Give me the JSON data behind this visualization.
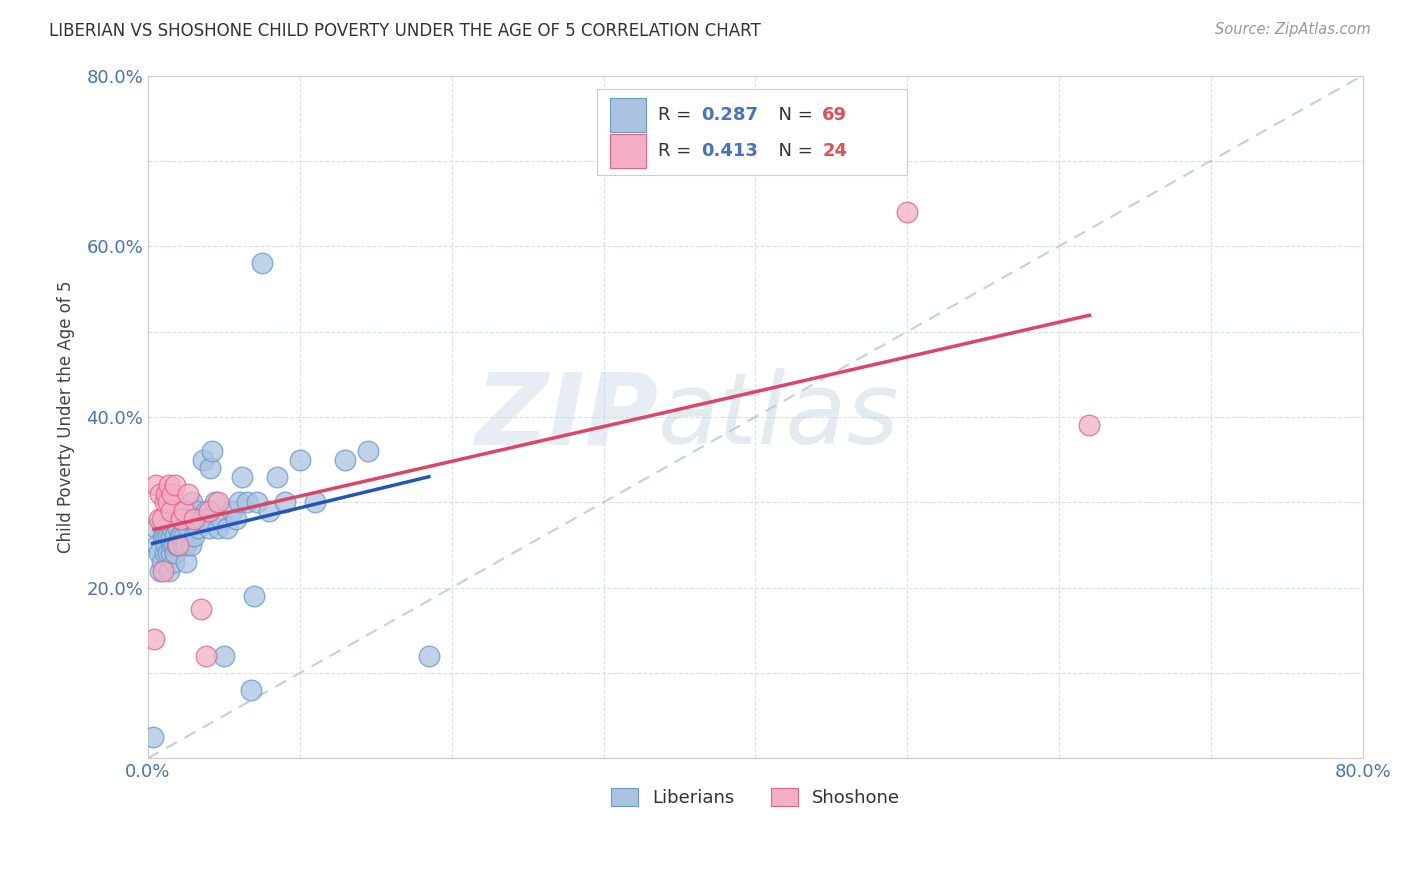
{
  "title": "LIBERIAN VS SHOSHONE CHILD POVERTY UNDER THE AGE OF 5 CORRELATION CHART",
  "source": "Source: ZipAtlas.com",
  "ylabel": "Child Poverty Under the Age of 5",
  "xlim": [
    0.0,
    0.8
  ],
  "ylim": [
    0.0,
    0.8
  ],
  "liberian_color": "#aac4e0",
  "shoshone_color": "#f4afc5",
  "liberian_edge_color": "#6699cc",
  "shoshone_edge_color": "#dd6688",
  "trend_liberian_color": "#2255bb",
  "trend_shoshone_color": "#dd4466",
  "dashed_line_color": "#b8c8d8",
  "watermark_zip": "ZIP",
  "watermark_atlas": "atlas",
  "R_liberian": "0.287",
  "N_liberian": "69",
  "R_shoshone": "0.413",
  "N_shoshone": "24",
  "liberian_x": [
    0.003,
    0.005,
    0.006,
    0.007,
    0.008,
    0.009,
    0.01,
    0.01,
    0.011,
    0.011,
    0.012,
    0.012,
    0.013,
    0.013,
    0.014,
    0.015,
    0.015,
    0.016,
    0.016,
    0.017,
    0.017,
    0.018,
    0.018,
    0.019,
    0.02,
    0.02,
    0.021,
    0.022,
    0.022,
    0.023,
    0.024,
    0.025,
    0.025,
    0.026,
    0.027,
    0.028,
    0.029,
    0.03,
    0.031,
    0.032,
    0.033,
    0.035,
    0.036,
    0.038,
    0.04,
    0.041,
    0.042,
    0.044,
    0.046,
    0.048,
    0.05,
    0.052,
    0.055,
    0.058,
    0.06,
    0.062,
    0.065,
    0.068,
    0.07,
    0.072,
    0.075,
    0.08,
    0.085,
    0.09,
    0.1,
    0.11,
    0.13,
    0.145,
    0.185
  ],
  "liberian_y": [
    0.025,
    0.27,
    0.25,
    0.24,
    0.22,
    0.23,
    0.26,
    0.28,
    0.24,
    0.26,
    0.25,
    0.27,
    0.24,
    0.26,
    0.22,
    0.24,
    0.26,
    0.25,
    0.27,
    0.23,
    0.25,
    0.24,
    0.26,
    0.25,
    0.25,
    0.27,
    0.26,
    0.26,
    0.28,
    0.25,
    0.26,
    0.23,
    0.25,
    0.27,
    0.28,
    0.25,
    0.3,
    0.26,
    0.28,
    0.29,
    0.27,
    0.28,
    0.35,
    0.29,
    0.27,
    0.34,
    0.36,
    0.3,
    0.27,
    0.28,
    0.12,
    0.27,
    0.29,
    0.28,
    0.3,
    0.33,
    0.3,
    0.08,
    0.19,
    0.3,
    0.58,
    0.29,
    0.33,
    0.3,
    0.35,
    0.3,
    0.35,
    0.36,
    0.12
  ],
  "shoshone_x": [
    0.004,
    0.005,
    0.007,
    0.008,
    0.009,
    0.01,
    0.011,
    0.012,
    0.013,
    0.014,
    0.015,
    0.016,
    0.018,
    0.02,
    0.022,
    0.024,
    0.026,
    0.03,
    0.035,
    0.038,
    0.04,
    0.046,
    0.5,
    0.62
  ],
  "shoshone_y": [
    0.14,
    0.32,
    0.28,
    0.31,
    0.28,
    0.22,
    0.3,
    0.31,
    0.3,
    0.32,
    0.29,
    0.31,
    0.32,
    0.25,
    0.28,
    0.29,
    0.31,
    0.28,
    0.175,
    0.12,
    0.29,
    0.3,
    0.64,
    0.39
  ],
  "background_color": "#ffffff",
  "grid_color": "#d8dfe8",
  "legend_liberian_label": "Liberians",
  "legend_shoshone_label": "Shoshone",
  "liberian_text_color": "#4472c4",
  "shoshone_text_color": "#4472c4",
  "N_text_color": "#e05050",
  "label_color": "#4472c4",
  "title_color": "#333333",
  "source_color": "#999999"
}
